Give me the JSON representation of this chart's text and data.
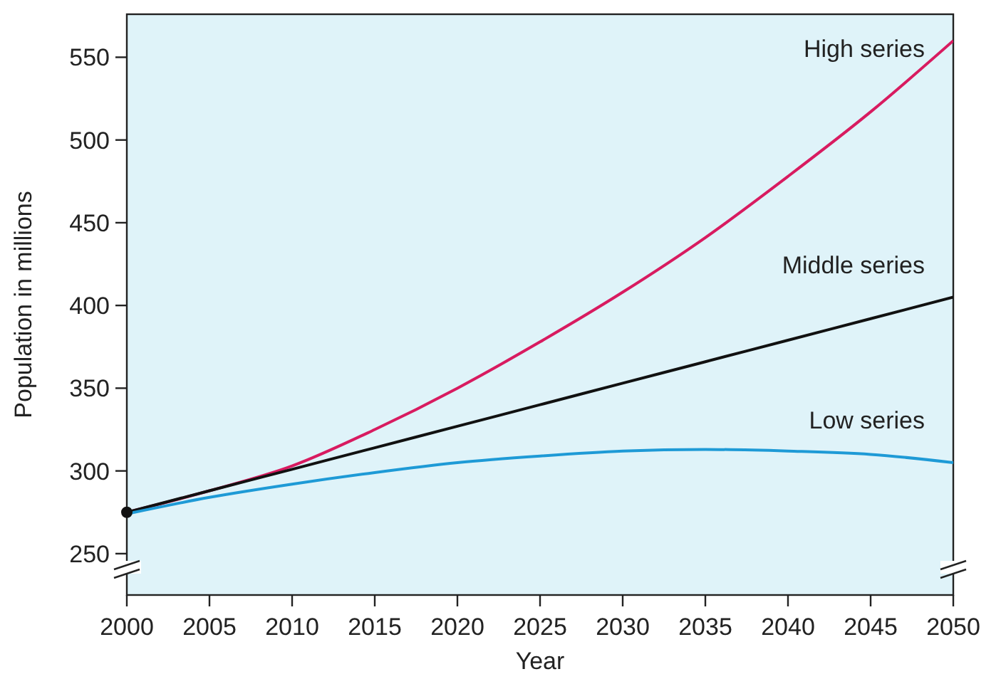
{
  "chart_data": {
    "type": "line",
    "xlabel": "Year",
    "ylabel": "Population in millions",
    "x": [
      2000,
      2005,
      2010,
      2015,
      2020,
      2025,
      2030,
      2035,
      2040,
      2045,
      2050
    ],
    "xlim": [
      2000,
      2050
    ],
    "xticks": [
      2000,
      2005,
      2010,
      2015,
      2020,
      2025,
      2030,
      2035,
      2040,
      2045,
      2050
    ],
    "ylim": [
      225,
      576
    ],
    "yticks": [
      250,
      300,
      350,
      400,
      450,
      500,
      550
    ],
    "grid": false,
    "marker": "none",
    "line_style": "solid",
    "series": [
      {
        "name": "High series",
        "color": "#d81b60",
        "values": [
          275,
          288,
          303,
          325,
          350,
          378,
          408,
          441,
          478,
          517,
          560
        ]
      },
      {
        "name": "Middle series",
        "color": "#111111",
        "values": [
          275,
          288,
          301,
          314,
          327,
          340,
          353,
          366,
          379,
          392,
          405
        ]
      },
      {
        "name": "Low series",
        "color": "#1e9ad6",
        "values": [
          274,
          284,
          292,
          299,
          305,
          309,
          312,
          313,
          312,
          310,
          305
        ]
      },
      {
        "type": "scatter",
        "color": "#111111",
        "x": [
          2000
        ],
        "values": [
          275
        ],
        "marker": "circle"
      }
    ]
  }
}
